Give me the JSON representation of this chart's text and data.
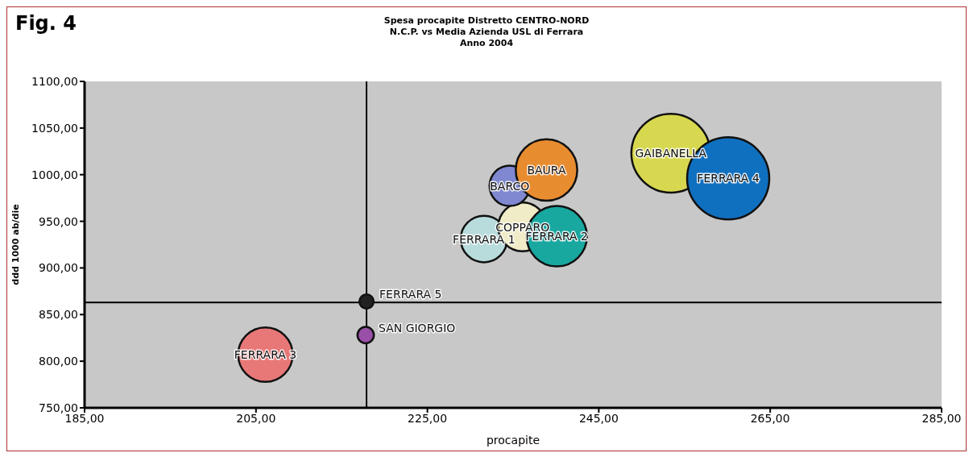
{
  "chart_data": {
    "type": "bubble",
    "title": "Spesa procapite Distretto CENTRO-NORD\nN.C.P. vs Media Azienda USL di Ferrara\nAnno 2004",
    "xlabel": "procapite",
    "ylabel": "ddd 1000 ab/die",
    "x": [
      206.1,
      217.8,
      217.9,
      231.6,
      236.1,
      234.6,
      238.9,
      240.1,
      253.4,
      260.1
    ],
    "values": [
      807,
      828,
      864,
      931,
      944,
      988,
      1005,
      934,
      1023,
      996
    ],
    "sizes": [
      0.44,
      0.04,
      0.03,
      0.32,
      0.35,
      0.24,
      0.56,
      0.54,
      0.92,
      1
    ],
    "colors": [
      "#e87878",
      "#9a50a8",
      "#222222",
      "#b8dcdc",
      "#f0ecc8",
      "#7f88d0",
      "#e88c30",
      "#18a8a0",
      "#d8d850",
      "#1070c0"
    ],
    "annotations": [
      {
        "text": "FERRARA 3",
        "x": 206.1,
        "y": 807
      },
      {
        "text": "SAN GIORGIO",
        "x": 217.8,
        "y": 828
      },
      {
        "text": "FERRARA 5",
        "x": 217.9,
        "y": 864
      },
      {
        "text": "FERRARA 1",
        "x": 231.6,
        "y": 931
      },
      {
        "text": "COPPARO",
        "x": 236.1,
        "y": 944
      },
      {
        "text": "BARCO",
        "x": 234.6,
        "y": 988
      },
      {
        "text": "BAURA",
        "x": 238.9,
        "y": 1005
      },
      {
        "text": "FERRARA 2",
        "x": 240.1,
        "y": 934
      },
      {
        "text": "GAIBANELLA",
        "x": 253.4,
        "y": 1023
      },
      {
        "text": "FERRARA 4",
        "x": 260.1,
        "y": 996
      },
      "Fig. 4"
    ],
    "xlim": [
      185,
      285
    ],
    "ylim": [
      750,
      1100
    ],
    "xticks": [
      {
        "value": 185,
        "label": "185,00"
      },
      {
        "value": 205,
        "label": "205,00"
      },
      {
        "value": 225,
        "label": "225,00"
      },
      {
        "value": 245,
        "label": "245,00"
      },
      {
        "value": 265,
        "label": "265,00"
      },
      {
        "value": 285,
        "label": "285,00"
      }
    ],
    "yticks": [
      {
        "value": 750,
        "label": "750,00"
      },
      {
        "value": 800,
        "label": "800,00"
      },
      {
        "value": 850,
        "label": "850,00"
      },
      {
        "value": 900,
        "label": "900,00"
      },
      {
        "value": 950,
        "label": "950,00"
      },
      {
        "value": 1000,
        "label": "1000,00"
      },
      {
        "value": 1050,
        "label": "1050,00"
      },
      {
        "value": 1100,
        "label": "1100,00"
      }
    ],
    "ref_lines": [
      {
        "axis": "x",
        "value": 217.9,
        "color": "#000000"
      },
      {
        "axis": "y",
        "value": 863,
        "color": "#000000"
      }
    ],
    "legend": false
  }
}
